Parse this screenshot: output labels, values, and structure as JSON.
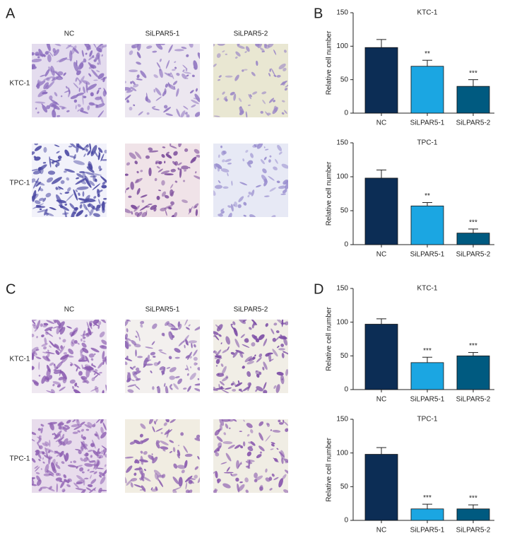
{
  "figure": {
    "panel_labels": [
      "A",
      "B",
      "C",
      "D"
    ],
    "image_panels": [
      {
        "columns": [
          "NC",
          "SiLPAR5-1",
          "SiLPAR5-2"
        ],
        "rows": [
          "KTC-1",
          "TPC-1"
        ]
      },
      {
        "columns": [
          "NC",
          "SiLPAR5-1",
          "SiLPAR5-2"
        ],
        "rows": [
          "KTC-1",
          "TPC-1"
        ]
      }
    ]
  },
  "chart_data": [
    {
      "type": "bar",
      "title": "KTC-1",
      "ylabel": "Relative cell number",
      "categories": [
        "NC",
        "SiLPAR5-1",
        "SiLPAR5-2"
      ],
      "values": [
        98,
        70,
        40
      ],
      "errors": [
        12,
        9,
        10
      ],
      "annotations": [
        null,
        "**",
        "***"
      ],
      "colors": [
        "#0c2d55",
        "#1ba6e2",
        "#005a80"
      ],
      "ylim": [
        0,
        150
      ],
      "yticks": [
        0,
        50,
        100,
        150
      ]
    },
    {
      "type": "bar",
      "title": "TPC-1",
      "ylabel": "Relative cell number",
      "categories": [
        "NC",
        "SiLPAR5-1",
        "SiLPAR5-2"
      ],
      "values": [
        98,
        57,
        17
      ],
      "errors": [
        12,
        5,
        6
      ],
      "annotations": [
        null,
        "**",
        "***"
      ],
      "colors": [
        "#0c2d55",
        "#1ba6e2",
        "#005a80"
      ],
      "ylim": [
        0,
        150
      ],
      "yticks": [
        0,
        50,
        100,
        150
      ]
    },
    {
      "type": "bar",
      "title": "KTC-1",
      "ylabel": "Relative cell number",
      "categories": [
        "NC",
        "SiLPAR5-1",
        "SiLPAR5-2"
      ],
      "values": [
        97,
        40,
        50
      ],
      "errors": [
        8,
        8,
        5
      ],
      "annotations": [
        null,
        "***",
        "***"
      ],
      "colors": [
        "#0c2d55",
        "#1ba6e2",
        "#005a80"
      ],
      "ylim": [
        0,
        150
      ],
      "yticks": [
        0,
        50,
        100,
        150
      ]
    },
    {
      "type": "bar",
      "title": "TPC-1",
      "ylabel": "Relative cell number",
      "categories": [
        "NC",
        "SiLPAR5-1",
        "SiLPAR5-2"
      ],
      "values": [
        98,
        17,
        17
      ],
      "errors": [
        10,
        7,
        6
      ],
      "annotations": [
        null,
        "***",
        "***"
      ],
      "colors": [
        "#0c2d55",
        "#1ba6e2",
        "#005a80"
      ],
      "ylim": [
        0,
        150
      ],
      "yticks": [
        0,
        50,
        100,
        150
      ]
    }
  ]
}
